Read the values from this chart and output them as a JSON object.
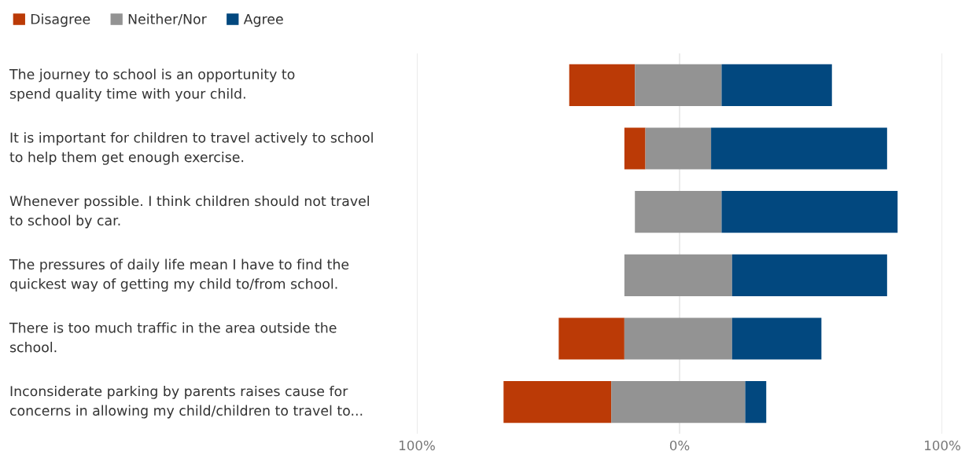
{
  "chart_data": {
    "type": "bar",
    "orientation": "horizontal",
    "categories": [
      "The journey to school is an opportunity to\nspend quality time with your child.",
      "It is important for children to travel actively to school\nto help them get enough exercise.",
      "Whenever possible. I think children should not travel\nto school by car.",
      "The pressures of daily life mean I have to find the\nquickest way of getting my child to/from school.",
      "There is too much traffic in the area outside the\nschool.",
      "Inconsiderate parking by parents raises cause for\nconcerns in allowing my child/children to travel to..."
    ],
    "series": [
      {
        "name": "Disagree",
        "color": "#bb3a06",
        "base": [
          -42,
          -21,
          null,
          null,
          -46,
          -67
        ],
        "values": [
          25,
          8,
          null,
          null,
          25,
          41
        ]
      },
      {
        "name": "Neither/Nor",
        "color": "#939393",
        "base": [
          -17,
          -13,
          -17,
          -21,
          -21,
          -26
        ],
        "values": [
          33,
          25,
          33,
          41,
          41,
          51
        ]
      },
      {
        "name": "Agree",
        "color": "#02487f",
        "base": [
          16,
          12,
          16,
          20,
          20,
          25
        ],
        "values": [
          42,
          67,
          67,
          59,
          34,
          8
        ]
      }
    ],
    "xlim": [
      -100,
      100
    ],
    "xticks": [
      {
        "value": -100,
        "label": "100%"
      },
      {
        "value": 0,
        "label": "0%"
      },
      {
        "value": 100,
        "label": "100%"
      }
    ],
    "grid": "x",
    "legend": "top left"
  }
}
